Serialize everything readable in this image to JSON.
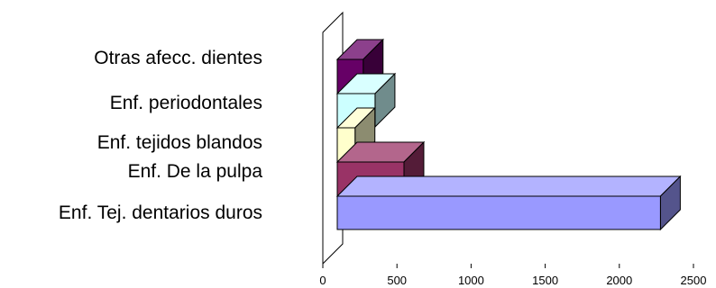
{
  "chart_data": {
    "type": "bar",
    "orientation": "horizontal",
    "style": "3d",
    "title": "",
    "xlabel": "",
    "ylabel": "",
    "xlim": [
      0,
      2500
    ],
    "ticks": [
      "0",
      "500",
      "1000",
      "1500",
      "2000",
      "2500"
    ],
    "grid": false,
    "legend": "none",
    "categories": [
      "Otras afecc. dientes",
      "Enf. periodontales",
      "Enf. tejidos blandos",
      "Enf. De la pulpa",
      "Enf. Tej. dentarios duros"
    ],
    "values": [
      175,
      255,
      120,
      450,
      2180
    ],
    "colors": [
      "#660066",
      "#ccffff",
      "#ffffcc",
      "#993366",
      "#9999ff"
    ]
  }
}
